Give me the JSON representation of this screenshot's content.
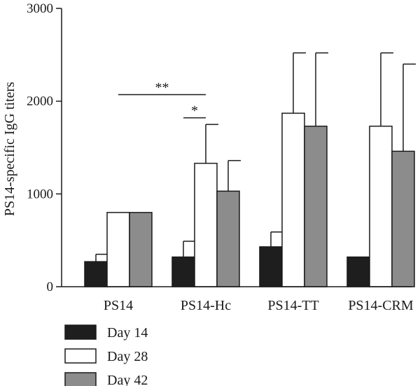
{
  "chart_data": {
    "type": "bar",
    "title": "",
    "xlabel": "",
    "ylabel": "PS14-specific IgG titers",
    "ylim": [
      0,
      3000
    ],
    "yticks": [
      0,
      1000,
      2000,
      3000
    ],
    "grid": false,
    "legend_position": "bottom-left",
    "categories": [
      "PS14",
      "PS14-Hc",
      "PS14-TT",
      "PS14-CRM"
    ],
    "series": [
      {
        "name": "Day 14",
        "color": "#1e1e1e",
        "values": [
          270,
          320,
          430,
          320
        ],
        "errors": [
          80,
          170,
          160,
          0
        ]
      },
      {
        "name": "Day 28",
        "color": "#ffffff",
        "values": [
          800,
          1330,
          1870,
          1730
        ],
        "errors": [
          0,
          420,
          650,
          790
        ]
      },
      {
        "name": "Day 42",
        "color": "#8c8c8c",
        "values": [
          800,
          1030,
          1730,
          1460
        ],
        "errors": [
          0,
          330,
          790,
          940
        ]
      }
    ],
    "annotations": [
      {
        "label": "**",
        "from_category": 0,
        "to_category": 1,
        "y": 2070
      },
      {
        "label": "*",
        "from_category": 1,
        "to_category": 1,
        "y": 1820
      }
    ]
  }
}
